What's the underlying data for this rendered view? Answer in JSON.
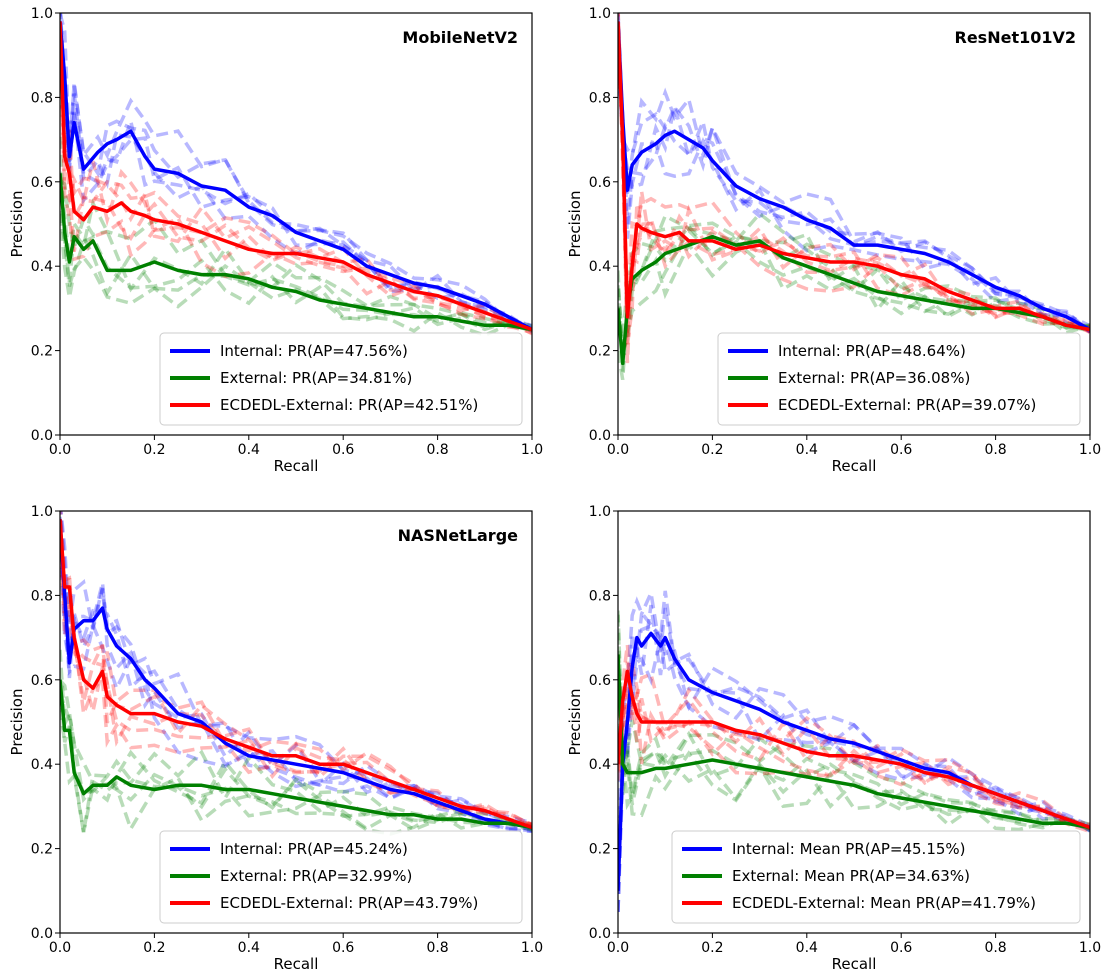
{
  "chart_data": [
    {
      "type": "line",
      "title": "MobileNetV2",
      "xlabel": "Recall",
      "ylabel": "Precision",
      "xlim": [
        0,
        1
      ],
      "ylim": [
        0,
        1
      ],
      "xticks": [
        "0.0",
        "0.2",
        "0.4",
        "0.6",
        "0.8",
        "1.0"
      ],
      "yticks": [
        "0.0",
        "0.2",
        "0.4",
        "0.6",
        "0.8",
        "1.0"
      ],
      "grid": false,
      "legend_position": "lower-right",
      "series": [
        {
          "name": "Internal: PR(AP=47.56%)",
          "color": "#0000ff",
          "x": [
            0.0,
            0.01,
            0.02,
            0.03,
            0.05,
            0.08,
            0.1,
            0.12,
            0.15,
            0.18,
            0.2,
            0.25,
            0.3,
            0.35,
            0.4,
            0.45,
            0.5,
            0.55,
            0.6,
            0.65,
            0.7,
            0.75,
            0.8,
            0.85,
            0.9,
            0.95,
            1.0
          ],
          "y": [
            0.98,
            0.85,
            0.66,
            0.74,
            0.63,
            0.67,
            0.69,
            0.7,
            0.72,
            0.66,
            0.63,
            0.62,
            0.59,
            0.58,
            0.54,
            0.52,
            0.48,
            0.46,
            0.44,
            0.4,
            0.38,
            0.36,
            0.35,
            0.33,
            0.31,
            0.28,
            0.25
          ]
        },
        {
          "name": "External: PR(AP=34.81%)",
          "color": "#008000",
          "x": [
            0.0,
            0.01,
            0.02,
            0.03,
            0.05,
            0.07,
            0.1,
            0.15,
            0.2,
            0.25,
            0.3,
            0.35,
            0.4,
            0.45,
            0.5,
            0.55,
            0.6,
            0.65,
            0.7,
            0.75,
            0.8,
            0.85,
            0.9,
            0.95,
            1.0
          ],
          "y": [
            0.62,
            0.48,
            0.41,
            0.47,
            0.44,
            0.46,
            0.39,
            0.39,
            0.41,
            0.39,
            0.38,
            0.38,
            0.37,
            0.35,
            0.34,
            0.32,
            0.31,
            0.3,
            0.29,
            0.28,
            0.28,
            0.27,
            0.26,
            0.26,
            0.25
          ]
        },
        {
          "name": "ECDEDL-External: PR(AP=42.51%)",
          "color": "#ff0000",
          "x": [
            0.0,
            0.01,
            0.02,
            0.03,
            0.05,
            0.07,
            0.1,
            0.13,
            0.15,
            0.18,
            0.2,
            0.25,
            0.3,
            0.35,
            0.4,
            0.45,
            0.5,
            0.55,
            0.6,
            0.65,
            0.7,
            0.75,
            0.8,
            0.85,
            0.9,
            0.95,
            1.0
          ],
          "y": [
            0.98,
            0.66,
            0.62,
            0.53,
            0.51,
            0.54,
            0.53,
            0.55,
            0.53,
            0.52,
            0.51,
            0.5,
            0.48,
            0.46,
            0.44,
            0.43,
            0.43,
            0.42,
            0.41,
            0.38,
            0.36,
            0.34,
            0.33,
            0.31,
            0.29,
            0.27,
            0.25
          ]
        }
      ]
    },
    {
      "type": "line",
      "title": "ResNet101V2",
      "xlabel": "Recall",
      "ylabel": "Precision",
      "xlim": [
        0,
        1
      ],
      "ylim": [
        0,
        1
      ],
      "xticks": [
        "0.0",
        "0.2",
        "0.4",
        "0.6",
        "0.8",
        "1.0"
      ],
      "yticks": [
        "0.0",
        "0.2",
        "0.4",
        "0.6",
        "0.8",
        "1.0"
      ],
      "grid": false,
      "legend_position": "lower-right",
      "series": [
        {
          "name": "Internal: PR(AP=48.64%)",
          "color": "#0000ff",
          "x": [
            0.0,
            0.01,
            0.02,
            0.03,
            0.05,
            0.08,
            0.1,
            0.12,
            0.15,
            0.18,
            0.2,
            0.25,
            0.3,
            0.35,
            0.4,
            0.45,
            0.5,
            0.55,
            0.6,
            0.65,
            0.7,
            0.75,
            0.8,
            0.85,
            0.9,
            0.95,
            1.0
          ],
          "y": [
            0.98,
            0.75,
            0.58,
            0.64,
            0.67,
            0.69,
            0.71,
            0.72,
            0.7,
            0.68,
            0.65,
            0.59,
            0.56,
            0.54,
            0.51,
            0.49,
            0.45,
            0.45,
            0.44,
            0.43,
            0.41,
            0.38,
            0.35,
            0.33,
            0.3,
            0.28,
            0.25
          ]
        },
        {
          "name": "External: PR(AP=36.08%)",
          "color": "#008000",
          "x": [
            0.0,
            0.01,
            0.02,
            0.03,
            0.05,
            0.08,
            0.1,
            0.15,
            0.2,
            0.25,
            0.3,
            0.35,
            0.4,
            0.45,
            0.5,
            0.55,
            0.6,
            0.65,
            0.7,
            0.75,
            0.8,
            0.85,
            0.9,
            0.95,
            1.0
          ],
          "y": [
            0.3,
            0.17,
            0.3,
            0.37,
            0.39,
            0.41,
            0.43,
            0.45,
            0.47,
            0.45,
            0.46,
            0.42,
            0.4,
            0.38,
            0.36,
            0.34,
            0.33,
            0.32,
            0.31,
            0.3,
            0.3,
            0.29,
            0.28,
            0.26,
            0.25
          ]
        },
        {
          "name": "ECDEDL-External: PR(AP=39.07%)",
          "color": "#ff0000",
          "x": [
            0.0,
            0.01,
            0.02,
            0.03,
            0.04,
            0.05,
            0.07,
            0.1,
            0.13,
            0.15,
            0.2,
            0.25,
            0.3,
            0.35,
            0.4,
            0.45,
            0.5,
            0.55,
            0.6,
            0.65,
            0.7,
            0.75,
            0.8,
            0.85,
            0.9,
            0.95,
            1.0
          ],
          "y": [
            0.98,
            0.7,
            0.28,
            0.4,
            0.5,
            0.49,
            0.48,
            0.47,
            0.48,
            0.46,
            0.46,
            0.44,
            0.45,
            0.43,
            0.42,
            0.41,
            0.41,
            0.4,
            0.38,
            0.37,
            0.34,
            0.32,
            0.3,
            0.3,
            0.28,
            0.26,
            0.25
          ]
        }
      ]
    },
    {
      "type": "line",
      "title": "NASNetLarge",
      "xlabel": "Recall",
      "ylabel": "Precision",
      "xlim": [
        0,
        1
      ],
      "ylim": [
        0,
        1
      ],
      "xticks": [
        "0.0",
        "0.2",
        "0.4",
        "0.6",
        "0.8",
        "1.0"
      ],
      "yticks": [
        "0.0",
        "0.2",
        "0.4",
        "0.6",
        "0.8",
        "1.0"
      ],
      "grid": false,
      "legend_position": "lower-right",
      "series": [
        {
          "name": "Internal: PR(AP=45.24%)",
          "color": "#0000ff",
          "x": [
            0.0,
            0.01,
            0.02,
            0.03,
            0.05,
            0.07,
            0.09,
            0.1,
            0.12,
            0.15,
            0.18,
            0.2,
            0.25,
            0.3,
            0.35,
            0.4,
            0.45,
            0.5,
            0.55,
            0.6,
            0.65,
            0.7,
            0.75,
            0.8,
            0.85,
            0.9,
            0.95,
            1.0
          ],
          "y": [
            0.98,
            0.8,
            0.64,
            0.72,
            0.74,
            0.74,
            0.77,
            0.72,
            0.68,
            0.65,
            0.6,
            0.58,
            0.52,
            0.5,
            0.45,
            0.42,
            0.41,
            0.4,
            0.39,
            0.38,
            0.36,
            0.34,
            0.33,
            0.31,
            0.29,
            0.27,
            0.26,
            0.25
          ]
        },
        {
          "name": "External: PR(AP=32.99%)",
          "color": "#008000",
          "x": [
            0.0,
            0.01,
            0.02,
            0.03,
            0.05,
            0.07,
            0.1,
            0.12,
            0.15,
            0.2,
            0.25,
            0.3,
            0.35,
            0.4,
            0.45,
            0.5,
            0.55,
            0.6,
            0.65,
            0.7,
            0.75,
            0.8,
            0.85,
            0.9,
            0.95,
            1.0
          ],
          "y": [
            0.6,
            0.48,
            0.48,
            0.38,
            0.33,
            0.35,
            0.35,
            0.37,
            0.35,
            0.34,
            0.35,
            0.35,
            0.34,
            0.34,
            0.33,
            0.32,
            0.31,
            0.3,
            0.29,
            0.28,
            0.28,
            0.27,
            0.27,
            0.26,
            0.26,
            0.25
          ]
        },
        {
          "name": "ECDEDL-External: PR(AP=43.79%)",
          "color": "#ff0000",
          "x": [
            0.0,
            0.01,
            0.02,
            0.03,
            0.05,
            0.07,
            0.09,
            0.1,
            0.12,
            0.15,
            0.2,
            0.25,
            0.3,
            0.35,
            0.4,
            0.45,
            0.5,
            0.55,
            0.6,
            0.65,
            0.7,
            0.75,
            0.8,
            0.85,
            0.9,
            0.95,
            1.0
          ],
          "y": [
            0.98,
            0.82,
            0.82,
            0.7,
            0.6,
            0.58,
            0.62,
            0.56,
            0.54,
            0.52,
            0.52,
            0.5,
            0.49,
            0.46,
            0.44,
            0.42,
            0.42,
            0.4,
            0.4,
            0.38,
            0.36,
            0.34,
            0.32,
            0.3,
            0.29,
            0.27,
            0.25
          ]
        }
      ]
    },
    {
      "type": "line",
      "title": "",
      "xlabel": "Recall",
      "ylabel": "Precision",
      "xlim": [
        0,
        1
      ],
      "ylim": [
        0,
        1
      ],
      "xticks": [
        "0.0",
        "0.2",
        "0.4",
        "0.6",
        "0.8",
        "1.0"
      ],
      "yticks": [
        "0.0",
        "0.2",
        "0.4",
        "0.6",
        "0.8",
        "1.0"
      ],
      "grid": false,
      "legend_position": "lower-right",
      "series": [
        {
          "name": "Internal: Mean PR(AP=45.15%)",
          "color": "#0000ff",
          "x": [
            0.0,
            0.01,
            0.02,
            0.03,
            0.04,
            0.05,
            0.07,
            0.09,
            0.1,
            0.12,
            0.15,
            0.2,
            0.25,
            0.3,
            0.35,
            0.4,
            0.45,
            0.5,
            0.55,
            0.6,
            0.65,
            0.7,
            0.75,
            0.8,
            0.85,
            0.9,
            0.95,
            1.0
          ],
          "y": [
            0.1,
            0.4,
            0.5,
            0.63,
            0.7,
            0.68,
            0.71,
            0.68,
            0.7,
            0.65,
            0.6,
            0.57,
            0.55,
            0.53,
            0.5,
            0.48,
            0.46,
            0.45,
            0.43,
            0.41,
            0.39,
            0.38,
            0.35,
            0.33,
            0.31,
            0.29,
            0.27,
            0.25
          ]
        },
        {
          "name": "External: Mean PR(AP=34.63%)",
          "color": "#008000",
          "x": [
            0.0,
            0.01,
            0.02,
            0.03,
            0.05,
            0.08,
            0.1,
            0.15,
            0.2,
            0.25,
            0.3,
            0.35,
            0.4,
            0.45,
            0.5,
            0.55,
            0.6,
            0.65,
            0.7,
            0.75,
            0.8,
            0.85,
            0.9,
            0.95,
            1.0
          ],
          "y": [
            0.66,
            0.4,
            0.38,
            0.38,
            0.38,
            0.39,
            0.39,
            0.4,
            0.41,
            0.4,
            0.39,
            0.38,
            0.37,
            0.36,
            0.35,
            0.33,
            0.32,
            0.31,
            0.3,
            0.29,
            0.28,
            0.27,
            0.26,
            0.26,
            0.25
          ]
        },
        {
          "name": "ECDEDL-External: Mean PR(AP=41.79%)",
          "color": "#ff0000",
          "x": [
            0.0,
            0.01,
            0.02,
            0.03,
            0.04,
            0.05,
            0.07,
            0.1,
            0.15,
            0.2,
            0.25,
            0.3,
            0.35,
            0.4,
            0.45,
            0.5,
            0.55,
            0.6,
            0.65,
            0.7,
            0.75,
            0.8,
            0.85,
            0.9,
            0.95,
            1.0
          ],
          "y": [
            0.4,
            0.55,
            0.62,
            0.56,
            0.52,
            0.5,
            0.5,
            0.5,
            0.5,
            0.5,
            0.48,
            0.47,
            0.45,
            0.43,
            0.42,
            0.42,
            0.41,
            0.4,
            0.38,
            0.37,
            0.35,
            0.33,
            0.31,
            0.29,
            0.27,
            0.25
          ]
        }
      ]
    }
  ]
}
